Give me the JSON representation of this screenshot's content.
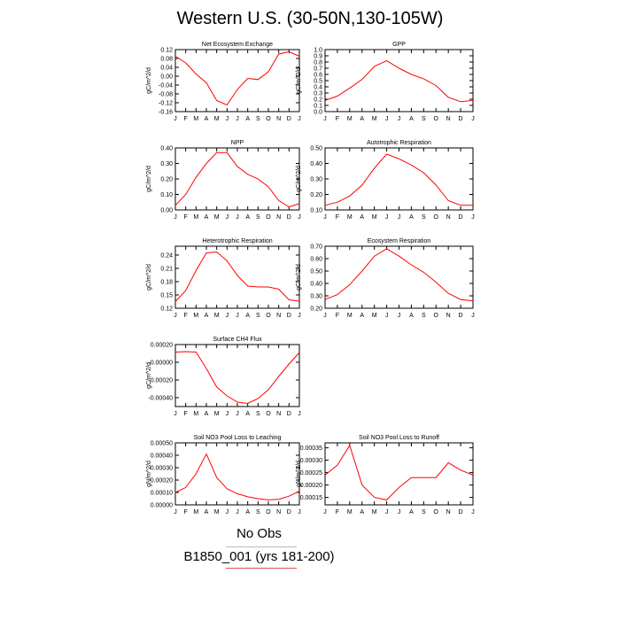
{
  "title": "Western U.S. (30-50N,130-105W)",
  "legend": {
    "obs_label": "No Obs",
    "model_label": "B1850_001 (yrs 181-200)",
    "model_color": "#ff0000"
  },
  "chart_data": [
    {
      "type": "line",
      "title": "Net Ecosystem Exchange",
      "ylabel": "gC/m^2/d",
      "categories": [
        "J",
        "F",
        "M",
        "A",
        "M",
        "J",
        "J",
        "A",
        "S",
        "O",
        "N",
        "D",
        "J"
      ],
      "ylim": [
        -0.16,
        0.12
      ],
      "yticks": [
        "0.12",
        "0.08",
        "0.04",
        "0.00",
        "-0.04",
        "-0.08",
        "-0.12",
        "-0.16"
      ],
      "series": [
        {
          "values": [
            0.09,
            0.06,
            0.01,
            -0.03,
            -0.11,
            -0.13,
            -0.06,
            -0.01,
            -0.015,
            0.02,
            0.1,
            0.11,
            0.09
          ]
        }
      ]
    },
    {
      "type": "line",
      "title": "GPP",
      "ylabel": "gC/m^2/d",
      "categories": [
        "J",
        "F",
        "M",
        "A",
        "M",
        "J",
        "J",
        "A",
        "S",
        "O",
        "N",
        "D",
        "J"
      ],
      "ylim": [
        0.0,
        1.0
      ],
      "yticks": [
        "1.0",
        "0.9",
        "0.8",
        "0.7",
        "0.6",
        "0.5",
        "0.4",
        "0.3",
        "0.2",
        "0.1",
        "0.0"
      ],
      "series": [
        {
          "values": [
            0.18,
            0.25,
            0.38,
            0.52,
            0.73,
            0.82,
            0.7,
            0.6,
            0.53,
            0.42,
            0.23,
            0.16,
            0.18
          ]
        }
      ]
    },
    {
      "type": "line",
      "title": "NPP",
      "ylabel": "gC/m^2/d",
      "categories": [
        "J",
        "F",
        "M",
        "A",
        "M",
        "J",
        "J",
        "A",
        "S",
        "O",
        "N",
        "D",
        "J"
      ],
      "ylim": [
        0.0,
        0.4
      ],
      "yticks": [
        "0.40",
        "0.30",
        "0.20",
        "0.10",
        "0.00"
      ],
      "series": [
        {
          "values": [
            0.03,
            0.1,
            0.21,
            0.3,
            0.37,
            0.37,
            0.28,
            0.23,
            0.2,
            0.15,
            0.06,
            0.02,
            0.04
          ]
        }
      ]
    },
    {
      "type": "line",
      "title": "Autotrophic Respiration",
      "ylabel": "gC/m^2/d",
      "categories": [
        "J",
        "F",
        "M",
        "A",
        "M",
        "J",
        "J",
        "A",
        "S",
        "O",
        "N",
        "D",
        "J"
      ],
      "ylim": [
        0.1,
        0.5
      ],
      "yticks": [
        "0.50",
        "0.40",
        "0.30",
        "0.20",
        "0.10"
      ],
      "series": [
        {
          "values": [
            0.13,
            0.15,
            0.19,
            0.26,
            0.37,
            0.46,
            0.43,
            0.39,
            0.34,
            0.26,
            0.16,
            0.13,
            0.13
          ]
        }
      ]
    },
    {
      "type": "line",
      "title": "Heterotrophic Respiration",
      "ylabel": "gC/m^2/d",
      "categories": [
        "J",
        "F",
        "M",
        "A",
        "M",
        "J",
        "J",
        "A",
        "S",
        "O",
        "N",
        "D",
        "J"
      ],
      "ylim": [
        0.12,
        0.26
      ],
      "yticks": [
        "0.24",
        "0.21",
        "0.18",
        "0.15",
        "0.12"
      ],
      "series": [
        {
          "values": [
            0.135,
            0.16,
            0.205,
            0.245,
            0.247,
            0.227,
            0.194,
            0.17,
            0.168,
            0.168,
            0.163,
            0.139,
            0.136
          ]
        }
      ]
    },
    {
      "type": "line",
      "title": "Ecosystem Respiration",
      "ylabel": "gC/m^2/d",
      "categories": [
        "J",
        "F",
        "M",
        "A",
        "M",
        "J",
        "J",
        "A",
        "S",
        "O",
        "N",
        "D",
        "J"
      ],
      "ylim": [
        0.2,
        0.7
      ],
      "yticks": [
        "0.70",
        "0.60",
        "0.50",
        "0.40",
        "0.30",
        "0.20"
      ],
      "series": [
        {
          "values": [
            0.27,
            0.31,
            0.39,
            0.5,
            0.62,
            0.68,
            0.62,
            0.55,
            0.49,
            0.41,
            0.32,
            0.27,
            0.26
          ]
        }
      ]
    },
    {
      "type": "line",
      "title": "Surface CH4 Flux",
      "ylabel": "gC/m^2/d",
      "categories": [
        "J",
        "F",
        "M",
        "A",
        "M",
        "J",
        "J",
        "A",
        "S",
        "O",
        "N",
        "D",
        "J"
      ],
      "ylim": [
        -0.0005,
        0.0002
      ],
      "yticks": [
        "0.00020",
        "-0.00000",
        "-0.00020",
        "-0.00040"
      ],
      "series": [
        {
          "values": [
            0.000115,
            0.00012,
            0.000115,
            -7e-05,
            -0.00028,
            -0.00038,
            -0.00045,
            -0.000465,
            -0.00041,
            -0.00031,
            -0.00016,
            -2e-05,
            0.00011
          ]
        }
      ]
    },
    {
      "type": "line",
      "title": "Soil NO3 Pool Loss to Leaching",
      "ylabel": "gN/m^2/d",
      "categories": [
        "J",
        "F",
        "M",
        "A",
        "M",
        "J",
        "J",
        "A",
        "S",
        "O",
        "N",
        "D",
        "J"
      ],
      "ylim": [
        0.0,
        0.0005
      ],
      "yticks": [
        "0.00050",
        "0.00040",
        "0.00030",
        "0.00020",
        "0.00010",
        "0.00000"
      ],
      "series": [
        {
          "values": [
            0.0001,
            0.00014,
            0.00025,
            0.00041,
            0.00022,
            0.00013,
            9e-05,
            6.5e-05,
            5e-05,
            4e-05,
            4.5e-05,
            7e-05,
            0.00011
          ]
        }
      ]
    },
    {
      "type": "line",
      "title": "Soil NO3 Pool Loss to Runoff",
      "ylabel": "gN/m^2/d",
      "categories": [
        "J",
        "F",
        "M",
        "A",
        "M",
        "J",
        "J",
        "A",
        "S",
        "O",
        "N",
        "D",
        "J"
      ],
      "ylim": [
        0.00012,
        0.00037
      ],
      "yticks": [
        "0.00035",
        "0.00030",
        "0.00025",
        "0.00020",
        "0.00015"
      ],
      "series": [
        {
          "values": [
            0.00024,
            0.00028,
            0.00036,
            0.0002,
            0.00015,
            0.00014,
            0.00019,
            0.00023,
            0.00023,
            0.00023,
            0.00029,
            0.00026,
            0.00024
          ]
        }
      ]
    }
  ]
}
